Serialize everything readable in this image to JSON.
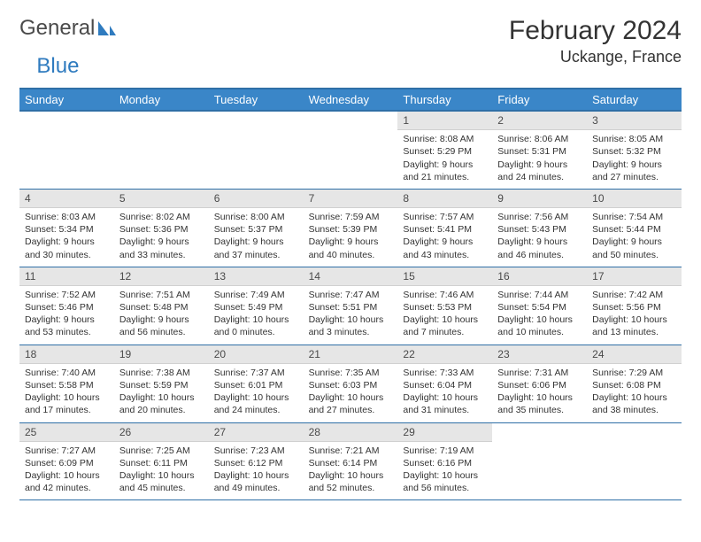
{
  "brand": {
    "part1": "General",
    "part2": "Blue"
  },
  "title": {
    "month": "February 2024",
    "location": "Uckange, France"
  },
  "colors": {
    "header_bg": "#3a86c8",
    "header_border": "#2f6fa6",
    "daynum_bg": "#e6e6e6",
    "text": "#333333"
  },
  "day_names": [
    "Sunday",
    "Monday",
    "Tuesday",
    "Wednesday",
    "Thursday",
    "Friday",
    "Saturday"
  ],
  "layout": {
    "leading_blanks": 4,
    "trailing_blanks": 2,
    "columns": 7
  },
  "days": [
    {
      "n": "1",
      "sunrise": "Sunrise: 8:08 AM",
      "sunset": "Sunset: 5:29 PM",
      "dl1": "Daylight: 9 hours",
      "dl2": "and 21 minutes."
    },
    {
      "n": "2",
      "sunrise": "Sunrise: 8:06 AM",
      "sunset": "Sunset: 5:31 PM",
      "dl1": "Daylight: 9 hours",
      "dl2": "and 24 minutes."
    },
    {
      "n": "3",
      "sunrise": "Sunrise: 8:05 AM",
      "sunset": "Sunset: 5:32 PM",
      "dl1": "Daylight: 9 hours",
      "dl2": "and 27 minutes."
    },
    {
      "n": "4",
      "sunrise": "Sunrise: 8:03 AM",
      "sunset": "Sunset: 5:34 PM",
      "dl1": "Daylight: 9 hours",
      "dl2": "and 30 minutes."
    },
    {
      "n": "5",
      "sunrise": "Sunrise: 8:02 AM",
      "sunset": "Sunset: 5:36 PM",
      "dl1": "Daylight: 9 hours",
      "dl2": "and 33 minutes."
    },
    {
      "n": "6",
      "sunrise": "Sunrise: 8:00 AM",
      "sunset": "Sunset: 5:37 PM",
      "dl1": "Daylight: 9 hours",
      "dl2": "and 37 minutes."
    },
    {
      "n": "7",
      "sunrise": "Sunrise: 7:59 AM",
      "sunset": "Sunset: 5:39 PM",
      "dl1": "Daylight: 9 hours",
      "dl2": "and 40 minutes."
    },
    {
      "n": "8",
      "sunrise": "Sunrise: 7:57 AM",
      "sunset": "Sunset: 5:41 PM",
      "dl1": "Daylight: 9 hours",
      "dl2": "and 43 minutes."
    },
    {
      "n": "9",
      "sunrise": "Sunrise: 7:56 AM",
      "sunset": "Sunset: 5:43 PM",
      "dl1": "Daylight: 9 hours",
      "dl2": "and 46 minutes."
    },
    {
      "n": "10",
      "sunrise": "Sunrise: 7:54 AM",
      "sunset": "Sunset: 5:44 PM",
      "dl1": "Daylight: 9 hours",
      "dl2": "and 50 minutes."
    },
    {
      "n": "11",
      "sunrise": "Sunrise: 7:52 AM",
      "sunset": "Sunset: 5:46 PM",
      "dl1": "Daylight: 9 hours",
      "dl2": "and 53 minutes."
    },
    {
      "n": "12",
      "sunrise": "Sunrise: 7:51 AM",
      "sunset": "Sunset: 5:48 PM",
      "dl1": "Daylight: 9 hours",
      "dl2": "and 56 minutes."
    },
    {
      "n": "13",
      "sunrise": "Sunrise: 7:49 AM",
      "sunset": "Sunset: 5:49 PM",
      "dl1": "Daylight: 10 hours",
      "dl2": "and 0 minutes."
    },
    {
      "n": "14",
      "sunrise": "Sunrise: 7:47 AM",
      "sunset": "Sunset: 5:51 PM",
      "dl1": "Daylight: 10 hours",
      "dl2": "and 3 minutes."
    },
    {
      "n": "15",
      "sunrise": "Sunrise: 7:46 AM",
      "sunset": "Sunset: 5:53 PM",
      "dl1": "Daylight: 10 hours",
      "dl2": "and 7 minutes."
    },
    {
      "n": "16",
      "sunrise": "Sunrise: 7:44 AM",
      "sunset": "Sunset: 5:54 PM",
      "dl1": "Daylight: 10 hours",
      "dl2": "and 10 minutes."
    },
    {
      "n": "17",
      "sunrise": "Sunrise: 7:42 AM",
      "sunset": "Sunset: 5:56 PM",
      "dl1": "Daylight: 10 hours",
      "dl2": "and 13 minutes."
    },
    {
      "n": "18",
      "sunrise": "Sunrise: 7:40 AM",
      "sunset": "Sunset: 5:58 PM",
      "dl1": "Daylight: 10 hours",
      "dl2": "and 17 minutes."
    },
    {
      "n": "19",
      "sunrise": "Sunrise: 7:38 AM",
      "sunset": "Sunset: 5:59 PM",
      "dl1": "Daylight: 10 hours",
      "dl2": "and 20 minutes."
    },
    {
      "n": "20",
      "sunrise": "Sunrise: 7:37 AM",
      "sunset": "Sunset: 6:01 PM",
      "dl1": "Daylight: 10 hours",
      "dl2": "and 24 minutes."
    },
    {
      "n": "21",
      "sunrise": "Sunrise: 7:35 AM",
      "sunset": "Sunset: 6:03 PM",
      "dl1": "Daylight: 10 hours",
      "dl2": "and 27 minutes."
    },
    {
      "n": "22",
      "sunrise": "Sunrise: 7:33 AM",
      "sunset": "Sunset: 6:04 PM",
      "dl1": "Daylight: 10 hours",
      "dl2": "and 31 minutes."
    },
    {
      "n": "23",
      "sunrise": "Sunrise: 7:31 AM",
      "sunset": "Sunset: 6:06 PM",
      "dl1": "Daylight: 10 hours",
      "dl2": "and 35 minutes."
    },
    {
      "n": "24",
      "sunrise": "Sunrise: 7:29 AM",
      "sunset": "Sunset: 6:08 PM",
      "dl1": "Daylight: 10 hours",
      "dl2": "and 38 minutes."
    },
    {
      "n": "25",
      "sunrise": "Sunrise: 7:27 AM",
      "sunset": "Sunset: 6:09 PM",
      "dl1": "Daylight: 10 hours",
      "dl2": "and 42 minutes."
    },
    {
      "n": "26",
      "sunrise": "Sunrise: 7:25 AM",
      "sunset": "Sunset: 6:11 PM",
      "dl1": "Daylight: 10 hours",
      "dl2": "and 45 minutes."
    },
    {
      "n": "27",
      "sunrise": "Sunrise: 7:23 AM",
      "sunset": "Sunset: 6:12 PM",
      "dl1": "Daylight: 10 hours",
      "dl2": "and 49 minutes."
    },
    {
      "n": "28",
      "sunrise": "Sunrise: 7:21 AM",
      "sunset": "Sunset: 6:14 PM",
      "dl1": "Daylight: 10 hours",
      "dl2": "and 52 minutes."
    },
    {
      "n": "29",
      "sunrise": "Sunrise: 7:19 AM",
      "sunset": "Sunset: 6:16 PM",
      "dl1": "Daylight: 10 hours",
      "dl2": "and 56 minutes."
    }
  ]
}
